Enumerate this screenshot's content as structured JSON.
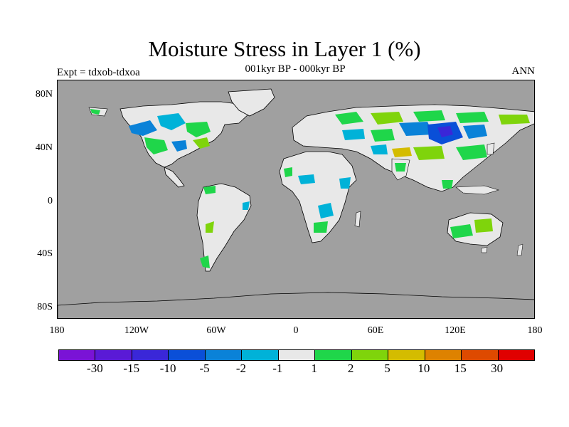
{
  "figure": {
    "title": "Moisture Stress in Layer 1 (%)",
    "subtitle": "001kyr BP - 000kyr BP",
    "left_label": "Expt = tdxob-tdxoa",
    "right_label": "ANN"
  },
  "map": {
    "projection": "cylindrical equidistant",
    "ocean_color": "#a0a0a0",
    "land_background_color": "#e8e8e8",
    "lat_ticks": [
      "80N",
      "40N",
      "0",
      "40S",
      "80S"
    ],
    "lon_ticks": [
      "180",
      "120W",
      "60W",
      "0",
      "60E",
      "120E",
      "180"
    ],
    "regions": {
      "north_america": {
        "labels": [
          "blue",
          "green",
          "yellow",
          "green"
        ]
      },
      "south_america": {
        "labels": [
          "green"
        ]
      },
      "africa": {
        "labels": [
          "blue",
          "green"
        ]
      },
      "eurasia": {
        "labels": [
          "blue",
          "purple",
          "green",
          "yellow"
        ]
      },
      "australia": {
        "labels": [
          "green"
        ]
      }
    }
  },
  "colorbar": {
    "colors": [
      "#7a13d6",
      "#5a1ad6",
      "#3a27d8",
      "#0a4fd8",
      "#0a82d8",
      "#00b2d8",
      "#e8e8e8",
      "#1fd64a",
      "#7fd40b",
      "#d4bc00",
      "#de8200",
      "#de4a00",
      "#e00000"
    ],
    "labels": [
      "-30",
      "-15",
      "-10",
      "-5",
      "-2",
      "-1",
      "1",
      "2",
      "5",
      "10",
      "15",
      "30"
    ]
  }
}
